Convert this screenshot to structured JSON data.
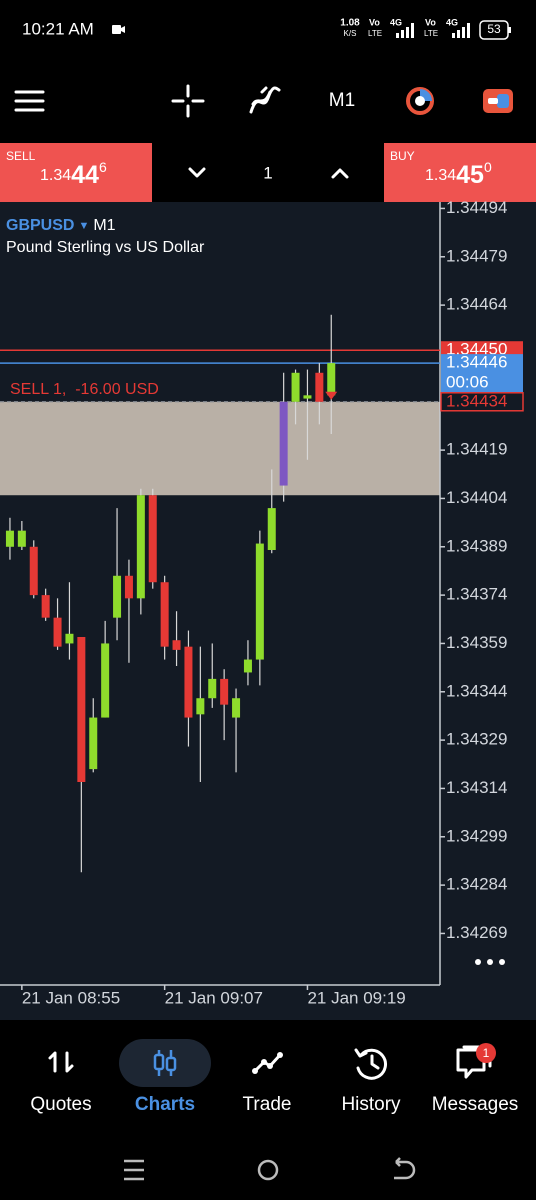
{
  "status_bar": {
    "time": "10:21 AM",
    "speed": "1.08",
    "speed_unit": "K/S",
    "sim1": {
      "top": "Vo",
      "bottom": "LTE",
      "gen": "4G"
    },
    "sim2": {
      "top": "Vo",
      "bottom": "LTE",
      "gen": "4G"
    },
    "battery": "53"
  },
  "toolbar": {
    "timeframe": "M1"
  },
  "trade_panel": {
    "sell": {
      "label": "SELL",
      "price_main": "1.34",
      "price_big": "44",
      "price_small": "6"
    },
    "volume": "1",
    "buy": {
      "label": "BUY",
      "price_main": "1.34",
      "price_big": "45",
      "price_small": "0"
    }
  },
  "chart_data": {
    "type": "candlestick",
    "symbol": "GBPUSD",
    "timeframe": "M1",
    "description": "Pound Sterling vs US Dollar",
    "categories": [
      null,
      "21 Jan 08:55",
      null,
      null,
      null,
      null,
      null,
      null,
      null,
      null,
      null,
      null,
      null,
      "21 Jan 09:07",
      null,
      null,
      null,
      null,
      null,
      null,
      null,
      null,
      null,
      null,
      null,
      "21 Jan 09:19",
      null,
      null
    ],
    "open": [
      1.34389,
      1.34389,
      1.34389,
      1.34374,
      1.34367,
      1.34359,
      1.34361,
      1.3432,
      1.34336,
      1.34367,
      1.3438,
      1.34373,
      1.34405,
      1.34378,
      1.3436,
      1.34358,
      1.34337,
      1.34342,
      1.34348,
      1.34336,
      1.3435,
      1.34354,
      1.34388,
      1.34408,
      1.34434,
      1.34435,
      1.34443,
      1.34436
    ],
    "high": [
      1.34398,
      1.34397,
      1.34391,
      1.34376,
      1.34373,
      1.34378,
      1.34361,
      1.34342,
      1.34366,
      1.34401,
      1.34385,
      1.34407,
      1.34407,
      1.3438,
      1.34369,
      1.34363,
      1.34358,
      1.34359,
      1.34351,
      1.34345,
      1.3436,
      1.34394,
      1.34413,
      1.34443,
      1.34444,
      1.34444,
      1.34446,
      1.34461
    ],
    "low": [
      1.34385,
      1.34388,
      1.34373,
      1.34366,
      1.34357,
      1.34354,
      1.34288,
      1.34319,
      1.34336,
      1.3436,
      1.34353,
      1.34368,
      1.34376,
      1.34354,
      1.34352,
      1.34327,
      1.34316,
      1.34339,
      1.34329,
      1.34319,
      1.34346,
      1.34346,
      1.34387,
      1.34403,
      1.34427,
      1.34416,
      1.34427,
      1.34424
    ],
    "close": [
      1.34394,
      1.34394,
      1.34374,
      1.34367,
      1.34358,
      1.34362,
      1.34316,
      1.34336,
      1.34359,
      1.3438,
      1.34373,
      1.34405,
      1.34378,
      1.34358,
      1.34357,
      1.34336,
      1.34342,
      1.34348,
      1.3434,
      1.34342,
      1.34354,
      1.3439,
      1.34401,
      1.34434,
      1.34443,
      1.34436,
      1.34434,
      1.34446
    ],
    "up_color": "#8fdc2c",
    "down_color": "#e53935",
    "wick_color": "#d8d8d8",
    "highlight": {
      "index": 23,
      "color": "#7e57c2"
    },
    "ylim": [
      1.34253,
      1.34496
    ],
    "yticks": [
      1.34494,
      1.34479,
      1.34464,
      1.34419,
      1.34404,
      1.34389,
      1.34374,
      1.34359,
      1.34344,
      1.34329,
      1.34314,
      1.34299,
      1.34284,
      1.34269
    ],
    "ask_line": {
      "value": 1.3445,
      "label": "1.34450",
      "color": "#e53935"
    },
    "bid_line": {
      "value": 1.34446,
      "color": "#4a90e2",
      "countdown": "00:06"
    },
    "position_line": {
      "value": 1.34434,
      "text": "SELL 1,  -16.00 USD",
      "zone_bottom": 1.34405,
      "zone_color": "#c2b8ae"
    }
  },
  "nav": {
    "items": [
      "Quotes",
      "Charts",
      "Trade",
      "History",
      "Messages"
    ],
    "badge": "1"
  }
}
